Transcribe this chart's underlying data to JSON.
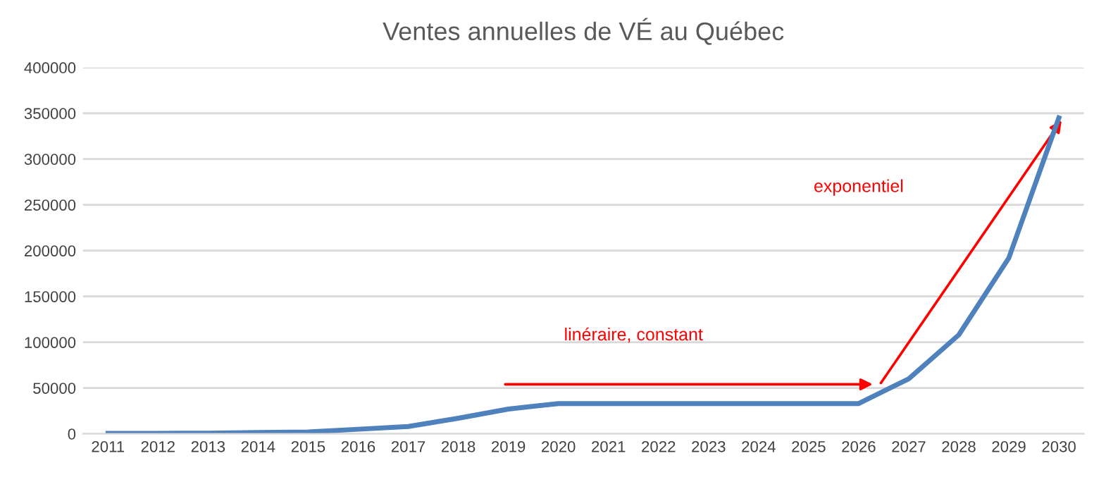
{
  "chart_data": {
    "type": "line",
    "title": "Ventes annuelles de VÉ au Québec",
    "categories": [
      "2011",
      "2012",
      "2013",
      "2014",
      "2015",
      "2016",
      "2017",
      "2018",
      "2019",
      "2020",
      "2021",
      "2022",
      "2023",
      "2024",
      "2025",
      "2026",
      "2027",
      "2028",
      "2029",
      "2030"
    ],
    "series": [
      {
        "color": "#4f81bd",
        "values": [
          500,
          500,
          700,
          1500,
          2000,
          5000,
          8000,
          17000,
          27000,
          33000,
          33000,
          33000,
          33000,
          33000,
          33000,
          33000,
          60000,
          108000,
          192000,
          345000
        ]
      }
    ],
    "ylim": [
      0,
      400000
    ],
    "yticks": [
      0,
      50000,
      100000,
      150000,
      200000,
      250000,
      300000,
      350000,
      400000
    ],
    "grid": "y",
    "legend": false,
    "marker": "none",
    "line_style": "solid",
    "annotations": [
      "linéraire, constant",
      "exponentiel"
    ]
  }
}
